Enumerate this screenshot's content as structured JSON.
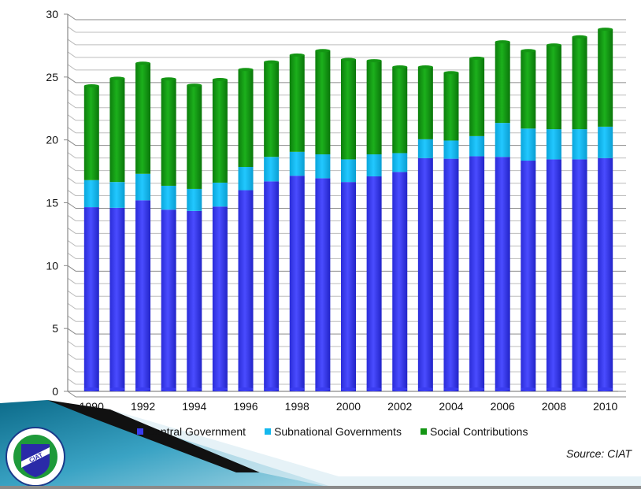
{
  "chart_data": {
    "type": "bar",
    "stacked": true,
    "title": "",
    "xlabel": "",
    "ylabel": "",
    "ylim": [
      0,
      30
    ],
    "yticks": [
      0,
      5,
      10,
      15,
      20,
      25,
      30
    ],
    "grid": true,
    "legend_position": "bottom",
    "categories": [
      "1990",
      "1991",
      "1992",
      "1993",
      "1994",
      "1995",
      "1996",
      "1997",
      "1998",
      "1999",
      "2000",
      "2001",
      "2002",
      "2003",
      "2004",
      "2005",
      "2006",
      "2007",
      "2008",
      "2009",
      "2010"
    ],
    "xtick_labels": [
      "1990",
      "1992",
      "1994",
      "1996",
      "1998",
      "2000",
      "2002",
      "2004",
      "2006",
      "2008",
      "2010"
    ],
    "series": [
      {
        "name": "Central Government",
        "color": "#3a3cf0",
        "values": [
          14.65,
          14.6,
          15.2,
          14.45,
          14.35,
          14.7,
          16.0,
          16.7,
          17.15,
          16.95,
          16.65,
          17.1,
          17.45,
          18.55,
          18.5,
          18.7,
          18.65,
          18.35,
          18.45,
          18.45,
          18.55
        ]
      },
      {
        "name": "Subnational Governments",
        "color": "#14b8ee",
        "values": [
          2.15,
          2.05,
          2.1,
          1.9,
          1.75,
          1.9,
          1.85,
          1.95,
          1.9,
          1.9,
          1.8,
          1.75,
          1.5,
          1.5,
          1.45,
          1.6,
          2.7,
          2.55,
          2.4,
          2.4,
          2.5
        ]
      },
      {
        "name": "Social Contributions",
        "color": "#149614",
        "values": [
          7.5,
          8.25,
          8.8,
          8.5,
          8.25,
          8.2,
          7.75,
          7.55,
          7.7,
          8.25,
          7.95,
          7.45,
          6.85,
          5.75,
          5.4,
          6.2,
          6.45,
          6.2,
          6.7,
          7.35,
          7.75
        ]
      }
    ]
  },
  "footer": {
    "source": "Source: CIAT",
    "logo_text": "CIAT"
  }
}
